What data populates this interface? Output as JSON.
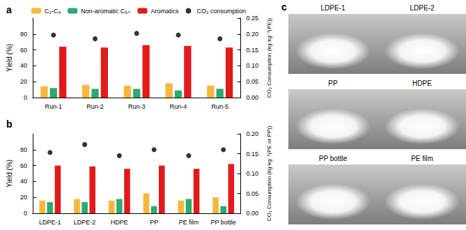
{
  "chart_data": [
    {
      "type": "bar",
      "title": "a",
      "categories": [
        "Run-1",
        "Run-2",
        "Run-3",
        "Run-4",
        "Run-5"
      ],
      "series": [
        {
          "name": "C₂-C₄",
          "color": "#f6b73c",
          "values": [
            14,
            16,
            15,
            18,
            15
          ]
        },
        {
          "name": "Non-aromatic C₅₊",
          "color": "#2eaa6e",
          "values": [
            12,
            11,
            11,
            9,
            11
          ]
        },
        {
          "name": "Aromatics",
          "color": "#e31a1c",
          "values": [
            64,
            63,
            66,
            65,
            63
          ]
        },
        {
          "name": "CO₂ consumption",
          "type": "scatter",
          "marker": "circle",
          "color": "#000000",
          "axis": "y2",
          "values": [
            0.197,
            0.185,
            0.202,
            0.197,
            0.185
          ]
        }
      ],
      "ylabel": "Yield (%)",
      "y2label": "CO₂ Consumption (kg·kg⁻¹(PE))",
      "ylim": [
        0,
        100
      ],
      "yticks": [
        0,
        20,
        40,
        60,
        80
      ],
      "y2lim": [
        0,
        0.25
      ],
      "y2ticks": [
        {
          "value": 0,
          "label": "0.00"
        },
        {
          "value": 0.05,
          "label": "0.05"
        },
        {
          "value": 0.1,
          "label": "0.10"
        },
        {
          "value": 0.15,
          "label": "0.15"
        },
        {
          "value": 0.2,
          "label": "0.20"
        },
        {
          "value": 0.25,
          "label": "0.25"
        }
      ],
      "legend": "top",
      "grid": false
    },
    {
      "type": "bar",
      "title": "b",
      "categories": [
        "LDPE-1",
        "LDPE-2",
        "HDPE",
        "PP",
        "PE film",
        "PP bottle"
      ],
      "series": [
        {
          "name": "C₂-C₄",
          "color": "#f6b73c",
          "values": [
            16,
            18,
            16,
            25,
            16,
            20
          ]
        },
        {
          "name": "Non-aromatic C₅₊",
          "color": "#2eaa6e",
          "values": [
            14,
            14,
            18,
            9,
            18,
            9
          ]
        },
        {
          "name": "Aromatics",
          "color": "#e31a1c",
          "values": [
            60,
            59,
            56,
            60,
            56,
            62
          ]
        },
        {
          "name": "CO₂ consumption",
          "type": "scatter",
          "marker": "circle",
          "color": "#000000",
          "axis": "y2",
          "values": [
            0.153,
            0.173,
            0.145,
            0.16,
            0.145,
            0.16
          ]
        }
      ],
      "ylabel": "Yield (%)",
      "y2label": "CO₂ Consumption (kg·kg⁻¹(PE or PP))",
      "ylim": [
        0,
        100
      ],
      "yticks": [
        0,
        20,
        40,
        60,
        80
      ],
      "y2lim": [
        0,
        0.2
      ],
      "y2ticks": [
        {
          "value": 0,
          "label": "0.00"
        },
        {
          "value": 0.05,
          "label": "0.05"
        },
        {
          "value": 0.1,
          "label": "0.10"
        },
        {
          "value": 0.15,
          "label": "0.15"
        },
        {
          "value": 0.2,
          "label": "0.20"
        }
      ],
      "grid": false
    }
  ],
  "photos": {
    "label": "c",
    "items": [
      "LDPE-1",
      "LDPE-2",
      "PP",
      "HDPE",
      "PP bottle",
      "PE film"
    ]
  }
}
